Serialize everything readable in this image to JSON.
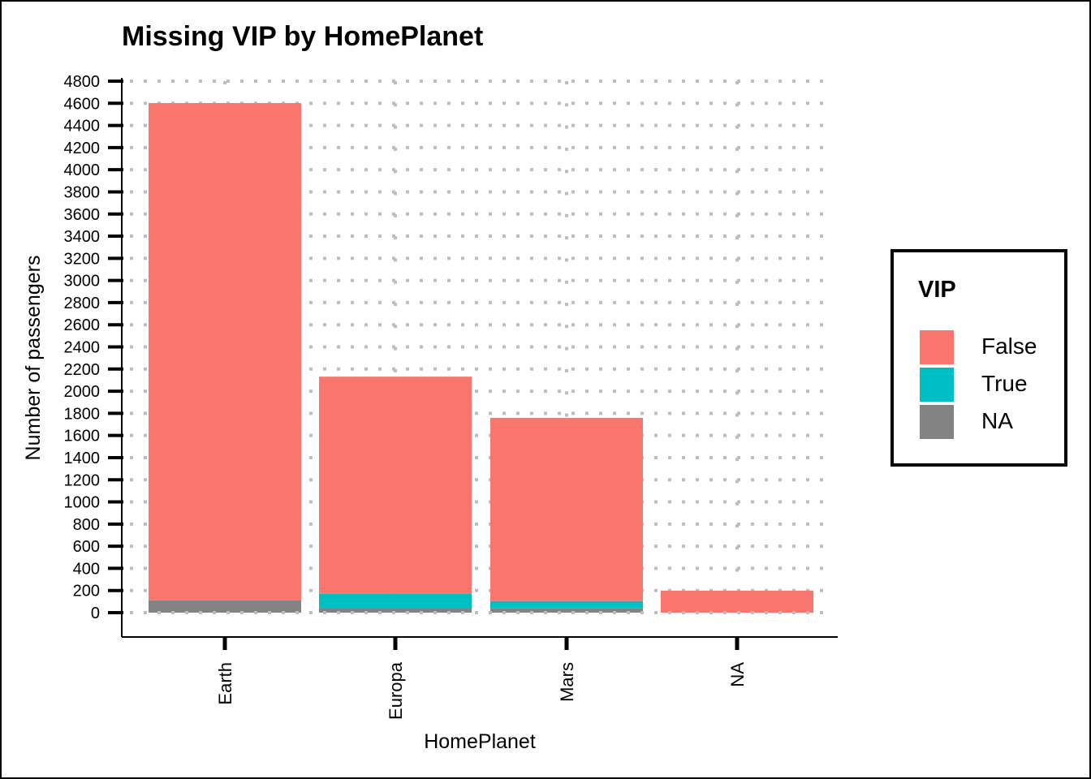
{
  "chart_data": {
    "type": "bar",
    "stacked": true,
    "title": "Missing VIP by HomePlanet",
    "xlabel": "HomePlanet",
    "ylabel": "Number of passengers",
    "categories": [
      "Earth",
      "Europa",
      "Mars",
      "NA"
    ],
    "series": [
      {
        "name": "NA",
        "color": "#838383",
        "values": [
          111,
          40,
          42,
          0
        ]
      },
      {
        "name": "True",
        "color": "#00bfc4",
        "values": [
          0,
          131,
          63,
          0
        ]
      },
      {
        "name": "False",
        "color": "#f8766d",
        "values": [
          4491,
          1960,
          1654,
          199
        ]
      }
    ],
    "ylim": [
      0,
      4800
    ],
    "yticks": [
      0,
      200,
      400,
      600,
      800,
      1000,
      1200,
      1400,
      1600,
      1800,
      2000,
      2200,
      2400,
      2600,
      2800,
      3000,
      3200,
      3400,
      3600,
      3800,
      4000,
      4200,
      4400,
      4600,
      4800
    ],
    "grid": "dotted",
    "legend": {
      "title": "VIP",
      "position": "right",
      "items": [
        {
          "label": "False",
          "color": "#f8766d"
        },
        {
          "label": "True",
          "color": "#00bfc4"
        },
        {
          "label": "NA",
          "color": "#838383"
        }
      ]
    }
  }
}
